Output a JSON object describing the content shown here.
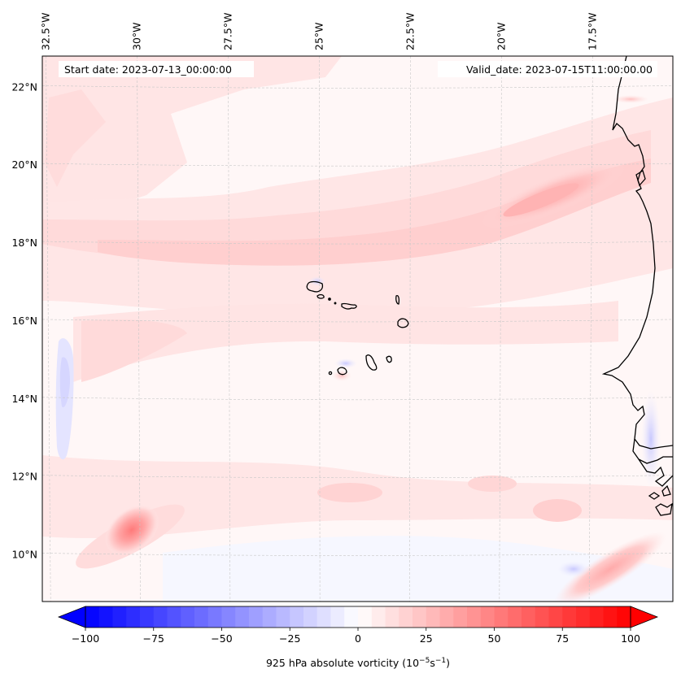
{
  "figure": {
    "start_date_label": "Start date: 2023-07-13_00:00:00",
    "valid_date_label": "Valid_date: 2023-07-15T11:00:00.00",
    "field": "925 hPa absolute vorticity",
    "units_text": "925 hPa absolute vorticity (10",
    "units_exp1": "−5",
    "units_mid": "s",
    "units_exp2": "−1",
    "units_close": ")"
  },
  "map": {
    "longitude_labels": [
      "32.5°W",
      "30°W",
      "27.5°W",
      "25°W",
      "22.5°W",
      "20°W",
      "17.5°W"
    ],
    "longitude_values": [
      -32.5,
      -30,
      -27.5,
      -25,
      -22.5,
      -20,
      -17.5
    ],
    "latitude_labels": [
      "22°N",
      "20°N",
      "18°N",
      "16°N",
      "14°N",
      "12°N",
      "10°N"
    ],
    "latitude_values": [
      22,
      20,
      18,
      16,
      14,
      12,
      10
    ],
    "extent": {
      "lon_min": -32.6,
      "lon_max": -15.3,
      "lat_min": 8.8,
      "lat_max": 22.8
    },
    "gridlines": "dashed light gray",
    "features": [
      "Cape Verde islands",
      "West African coastline (Mauritania, Senegal, Gambia, Guinea-Bissau)"
    ]
  },
  "chart_data": {
    "type": "heatmap",
    "title": "",
    "variable": "925 hPa absolute vorticity",
    "units": "10^-5 s^-1",
    "colormap": "bwr",
    "levels_min": -100,
    "levels_max": 100,
    "level_step": 5,
    "extend": "both",
    "colorbar": {
      "orientation": "horizontal",
      "placement": "bottom",
      "ticks": [
        -100,
        -75,
        -50,
        -25,
        0,
        25,
        50,
        75,
        100
      ],
      "tick_labels": [
        "−100",
        "−75",
        "−50",
        "−25",
        "0",
        "25",
        "50",
        "75",
        "100"
      ],
      "label": "925 hPa absolute vorticity (10^-5 s^-1)",
      "color_min": "#0000ff",
      "color_mid": "#ffffff",
      "color_max": "#ff0000"
    },
    "features_observed": [
      {
        "name": "vorticity maximum SW",
        "lon": -30.1,
        "lat": 10.7,
        "approx_value": 45
      },
      {
        "name": "elongated band NE",
        "lon": -19.5,
        "lat": 19.0,
        "approx_value": 30
      },
      {
        "name": "zonal band",
        "lon_range": [
          -32,
          -17
        ],
        "lat": 17.7,
        "approx_value": 15
      },
      {
        "name": "near-coast max SE",
        "lon": -17.3,
        "lat": 9.3,
        "approx_value": 30
      },
      {
        "name": "negative strip W",
        "lon": -32.0,
        "lat_range": [
          11.8,
          15.5
        ],
        "approx_value": -12
      },
      {
        "name": "background",
        "approx_value": 3
      }
    ]
  }
}
